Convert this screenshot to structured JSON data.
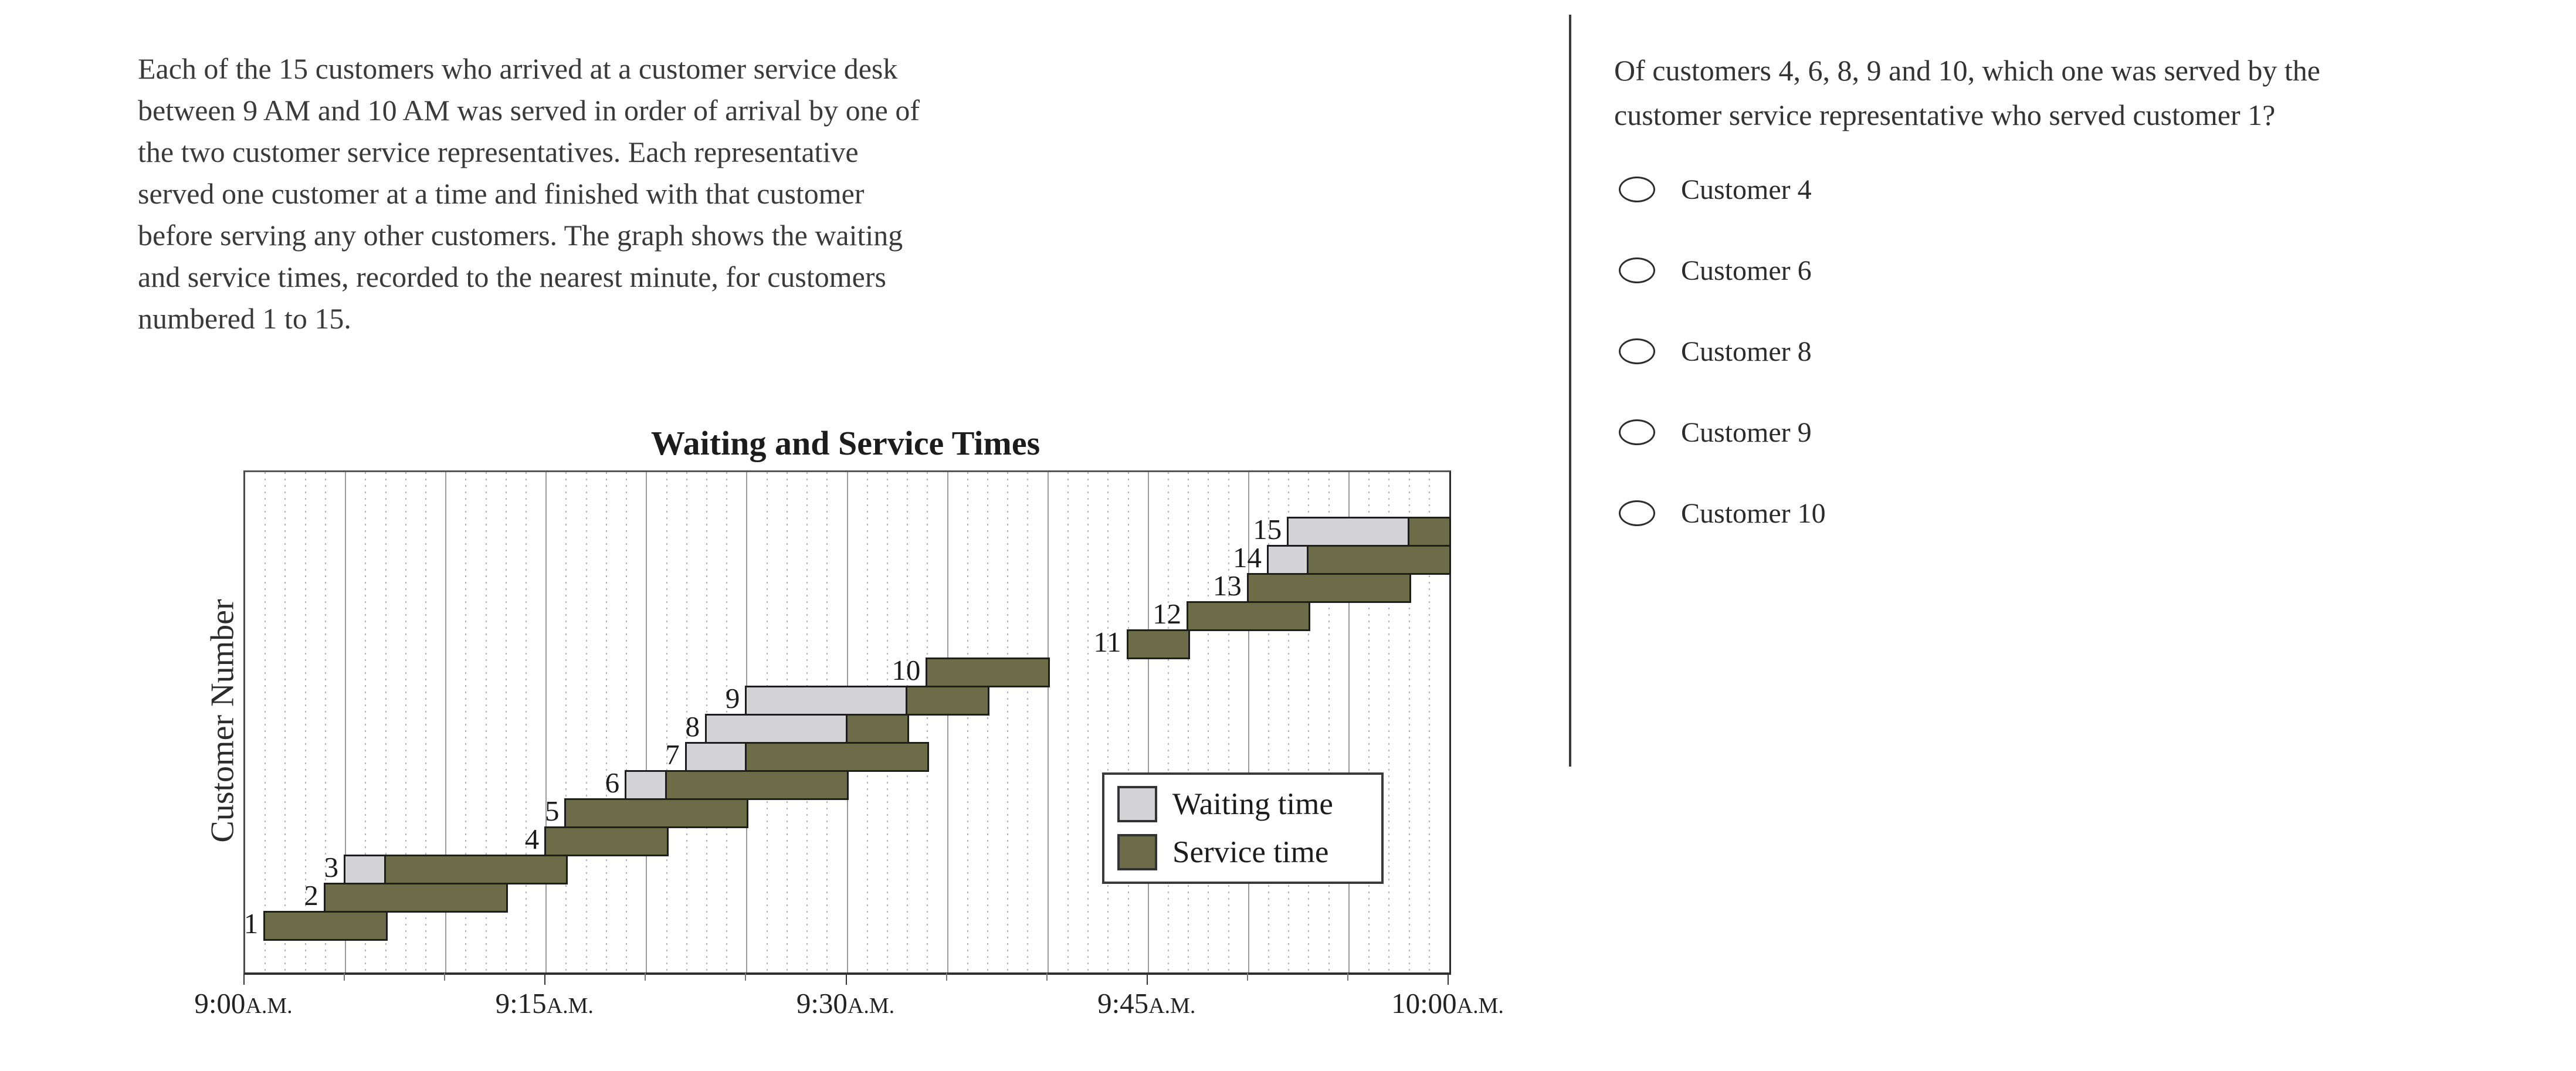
{
  "passage": {
    "lines": [
      "Each of the 15 customers who arrived at a customer service desk",
      "between 9 AM and 10 AM was served in order of arrival by one of",
      "the two customer service representatives. Each representative",
      "served one customer at a time and finished with that customer",
      "before serving any other customers. The graph shows the waiting",
      "and service times, recorded to the nearest minute, for customers",
      "numbered 1 to 15."
    ]
  },
  "chart": {
    "title": "Waiting and Service Times",
    "ylabel": "Customer Number",
    "legend": [
      {
        "name": "waiting",
        "label": "Waiting time",
        "color": "#d3d3d6"
      },
      {
        "name": "service",
        "label": "Service time",
        "color": "#6c6c49"
      }
    ],
    "x_ticks": [
      {
        "min": 0,
        "big": "9:00",
        "small": "A.M."
      },
      {
        "min": 15,
        "big": "9:15",
        "small": "A.M."
      },
      {
        "min": 30,
        "big": "9:30",
        "small": "A.M."
      },
      {
        "min": 45,
        "big": "9:45",
        "small": "A.M."
      },
      {
        "min": 60,
        "big": "10:00",
        "small": "A.M."
      }
    ],
    "chart_data": {
      "type": "bar",
      "subtype": "gantt-stacked-horizontal",
      "title": "Waiting and Service Times",
      "xlabel_ticks": [
        "9:00A.M.",
        "9:15A.M.",
        "9:30A.M.",
        "9:45A.M.",
        "10:00A.M."
      ],
      "ylabel": "Customer Number",
      "xlim_minutes_after_9am": [
        0,
        60
      ],
      "grid": {
        "major_every_min": 5,
        "minor_dotted_every_min": 1
      },
      "legend_position": "inside-right-middle",
      "series_meaning": "per customer: waiting segment (gray) then service segment (olive), minutes after 9:00 AM",
      "customers": [
        {
          "n": 1,
          "arrival_min": 1,
          "service_start_min": 1,
          "service_end_min": 7,
          "arrival": "9:01",
          "wait_minutes": 0,
          "service_minutes": 6
        },
        {
          "n": 2,
          "arrival_min": 4,
          "service_start_min": 4,
          "service_end_min": 13,
          "arrival": "9:04",
          "wait_minutes": 0,
          "service_minutes": 9
        },
        {
          "n": 3,
          "arrival_min": 5,
          "service_start_min": 7,
          "service_end_min": 16,
          "arrival": "9:05",
          "wait_minutes": 2,
          "service_minutes": 9
        },
        {
          "n": 4,
          "arrival_min": 15,
          "service_start_min": 15,
          "service_end_min": 21,
          "arrival": "9:15",
          "wait_minutes": 0,
          "service_minutes": 6
        },
        {
          "n": 5,
          "arrival_min": 16,
          "service_start_min": 16,
          "service_end_min": 25,
          "arrival": "9:16",
          "wait_minutes": 0,
          "service_minutes": 9
        },
        {
          "n": 6,
          "arrival_min": 19,
          "service_start_min": 21,
          "service_end_min": 30,
          "arrival": "9:19",
          "wait_minutes": 2,
          "service_minutes": 9
        },
        {
          "n": 7,
          "arrival_min": 22,
          "service_start_min": 25,
          "service_end_min": 34,
          "arrival": "9:22",
          "wait_minutes": 3,
          "service_minutes": 9
        },
        {
          "n": 8,
          "arrival_min": 23,
          "service_start_min": 30,
          "service_end_min": 33,
          "arrival": "9:23",
          "wait_minutes": 7,
          "service_minutes": 3
        },
        {
          "n": 9,
          "arrival_min": 25,
          "service_start_min": 33,
          "service_end_min": 37,
          "arrival": "9:25",
          "wait_minutes": 8,
          "service_minutes": 4
        },
        {
          "n": 10,
          "arrival_min": 34,
          "service_start_min": 34,
          "service_end_min": 40,
          "arrival": "9:34",
          "wait_minutes": 0,
          "service_minutes": 6
        },
        {
          "n": 11,
          "arrival_min": 44,
          "service_start_min": 44,
          "service_end_min": 47,
          "arrival": "9:44",
          "wait_minutes": 0,
          "service_minutes": 3
        },
        {
          "n": 12,
          "arrival_min": 47,
          "service_start_min": 47,
          "service_end_min": 53,
          "arrival": "9:47",
          "wait_minutes": 0,
          "service_minutes": 6
        },
        {
          "n": 13,
          "arrival_min": 50,
          "service_start_min": 50,
          "service_end_min": 58,
          "arrival": "9:50",
          "wait_minutes": 0,
          "service_minutes": 8
        },
        {
          "n": 14,
          "arrival_min": 51,
          "service_start_min": 53,
          "service_end_min": 60,
          "arrival": "9:51",
          "wait_minutes": 2,
          "service_minutes": 7
        },
        {
          "n": 15,
          "arrival_min": 52,
          "service_start_min": 58,
          "service_end_min": 60,
          "arrival": "9:52",
          "wait_minutes": 6,
          "service_minutes": 2
        }
      ]
    }
  },
  "question": {
    "lines": [
      "Of customers 4, 6, 8, 9 and 10, which one was served by the",
      "customer service representative who served customer 1?"
    ],
    "options": [
      {
        "label": "Customer 4",
        "selected": false
      },
      {
        "label": "Customer 6",
        "selected": false
      },
      {
        "label": "Customer 8",
        "selected": false
      },
      {
        "label": "Customer 9",
        "selected": false
      },
      {
        "label": "Customer 10",
        "selected": false
      }
    ]
  },
  "colors": {
    "waiting_fill": "#d3d3d6",
    "service_fill": "#6c6c49",
    "bar_border": "#1e1e1e",
    "grid_major": "#9b9b9b",
    "grid_minor_dots": "#b3b3b3",
    "divider": "#3b3b3b",
    "text": "#333333"
  }
}
